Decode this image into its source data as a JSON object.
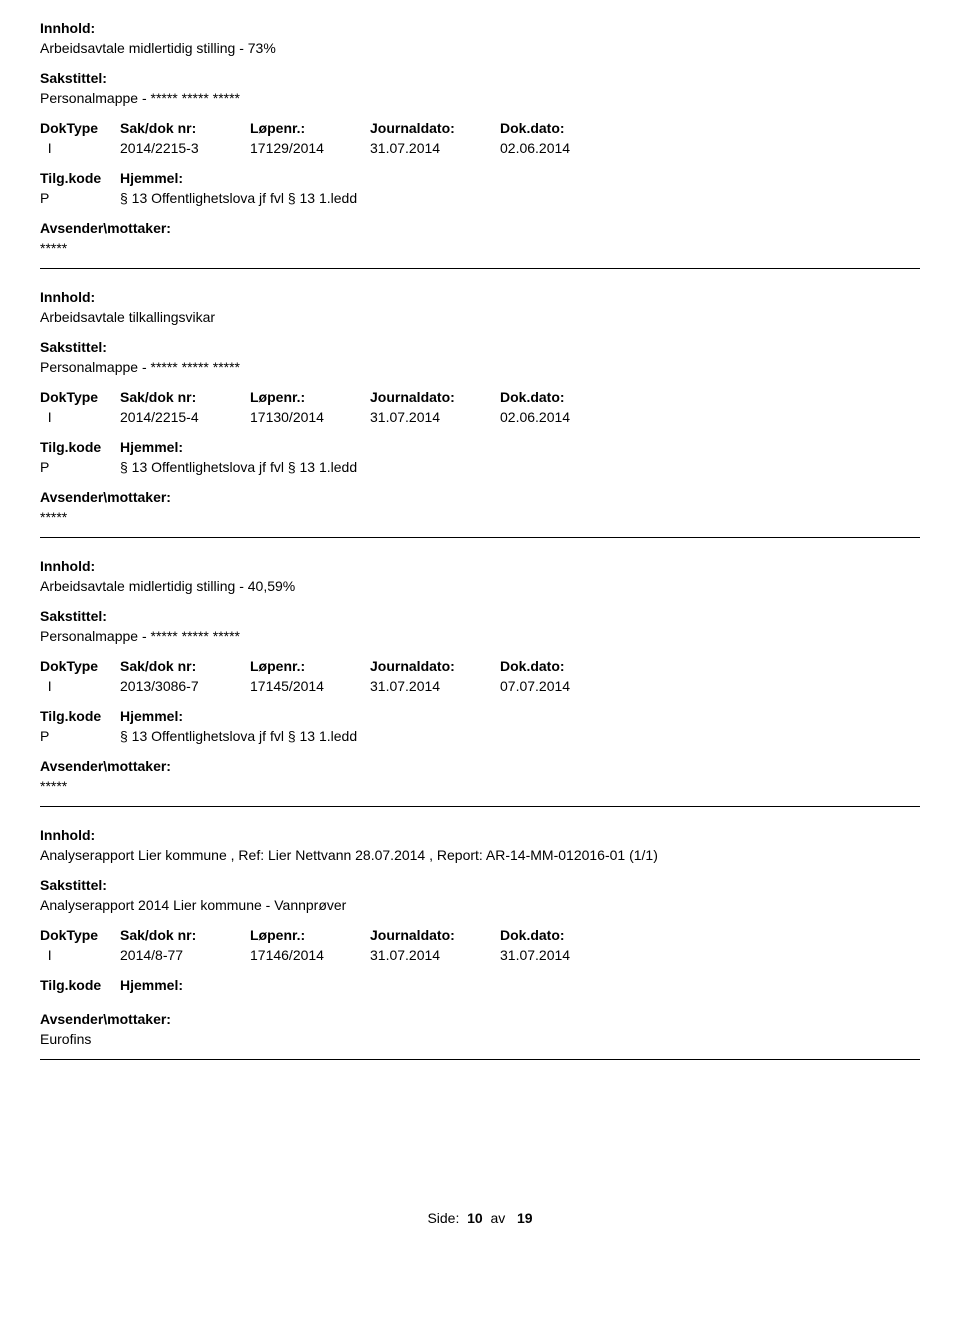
{
  "labels": {
    "innhold": "Innhold:",
    "sakstittel": "Sakstittel:",
    "doktype": "DokType",
    "sakdok": "Sak/dok nr:",
    "lopenr": "Løpenr.:",
    "journaldato": "Journaldato:",
    "dokdato": "Dok.dato:",
    "tilgkode": "Tilg.kode",
    "hjemmel": "Hjemmel:",
    "avsender": "Avsender\\mottaker:"
  },
  "entries": [
    {
      "innhold": "Arbeidsavtale midlertidig stilling - 73%",
      "sakstittel": "Personalmappe - ***** ***** *****",
      "doktype": "I",
      "sakdok": "2014/2215-3",
      "lopenr": "17129/2014",
      "journaldato": "31.07.2014",
      "dokdato": "02.06.2014",
      "tilgkode": "P",
      "hjemmel": "§ 13 Offentlighetslova jf fvl § 13 1.ledd",
      "avsender": "*****"
    },
    {
      "innhold": "Arbeidsavtale tilkallingsvikar",
      "sakstittel": "Personalmappe - ***** ***** *****",
      "doktype": "I",
      "sakdok": "2014/2215-4",
      "lopenr": "17130/2014",
      "journaldato": "31.07.2014",
      "dokdato": "02.06.2014",
      "tilgkode": "P",
      "hjemmel": "§ 13 Offentlighetslova jf fvl § 13 1.ledd",
      "avsender": "*****"
    },
    {
      "innhold": "Arbeidsavtale midlertidig stilling - 40,59%",
      "sakstittel": "Personalmappe - ***** ***** *****",
      "doktype": "I",
      "sakdok": "2013/3086-7",
      "lopenr": "17145/2014",
      "journaldato": "31.07.2014",
      "dokdato": "07.07.2014",
      "tilgkode": "P",
      "hjemmel": "§ 13 Offentlighetslova jf fvl § 13 1.ledd",
      "avsender": "*****"
    },
    {
      "innhold": "Analyserapport Lier kommune , Ref: Lier Nettvann 28.07.2014 , Report: AR-14-MM-012016-01  (1/1)",
      "sakstittel": "Analyserapport 2014 Lier kommune - Vannprøver",
      "doktype": "I",
      "sakdok": "2014/8-77",
      "lopenr": "17146/2014",
      "journaldato": "31.07.2014",
      "dokdato": "31.07.2014",
      "tilgkode": "",
      "hjemmel": "",
      "avsender": "Eurofins"
    }
  ],
  "footer": {
    "side": "Side:",
    "page": "10",
    "av": "av",
    "total": "19"
  }
}
